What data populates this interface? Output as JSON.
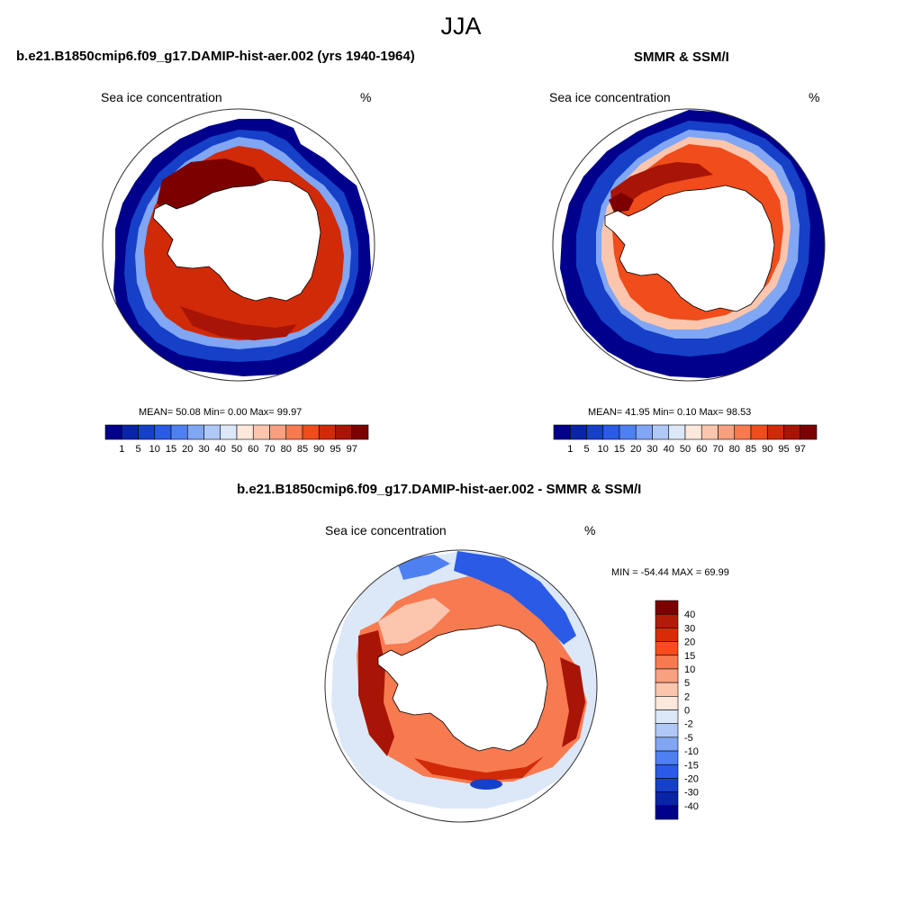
{
  "figure": {
    "title": "JJA",
    "panels": [
      {
        "title": "b.e21.B1850cmip6.f09_g17.DAMIP-hist-aer.002 (yrs 1940-1964)",
        "variable": "Sea ice concentration",
        "units": "%",
        "stats": "MEAN=  50.08  Min=   0.00  Max=  99.97"
      },
      {
        "title": "SMMR & SSM/I",
        "variable": "Sea ice concentration",
        "units": "%",
        "stats": "MEAN=  41.95  Min=   0.10  Max=  98.53"
      },
      {
        "title": "b.e21.B1850cmip6.f09_g17.DAMIP-hist-aer.002 - SMMR & SSM/I",
        "variable": "Sea ice concentration",
        "units": "%",
        "stats": "MIN = -54.44 MAX =  69.99"
      }
    ],
    "colorbar_conc": {
      "labels": [
        "1",
        "5",
        "10",
        "15",
        "20",
        "30",
        "40",
        "50",
        "60",
        "70",
        "80",
        "85",
        "90",
        "95",
        "97"
      ],
      "colors": [
        "#00008c",
        "#0a24a8",
        "#1640c8",
        "#2a5ae6",
        "#4e80f2",
        "#80a6f4",
        "#b0c8f6",
        "#dce8f8",
        "#fde8dc",
        "#fcc6ae",
        "#f8a080",
        "#f87a50",
        "#f04c1c",
        "#d02a08",
        "#a81406",
        "#7c0000"
      ]
    },
    "colorbar_diff": {
      "labels": [
        "40",
        "30",
        "20",
        "15",
        "10",
        "5",
        "2",
        "0",
        "-2",
        "-5",
        "-10",
        "-15",
        "-20",
        "-30",
        "-40"
      ],
      "colors": [
        "#7c0000",
        "#b01c06",
        "#d82c08",
        "#f84c1c",
        "#f87a50",
        "#f8a080",
        "#fcc6ae",
        "#fde8dc",
        "#dce8f8",
        "#b0c8f6",
        "#80a6f4",
        "#4e80f2",
        "#2a5ae6",
        "#1640c8",
        "#0a24a8",
        "#00008c"
      ]
    }
  }
}
